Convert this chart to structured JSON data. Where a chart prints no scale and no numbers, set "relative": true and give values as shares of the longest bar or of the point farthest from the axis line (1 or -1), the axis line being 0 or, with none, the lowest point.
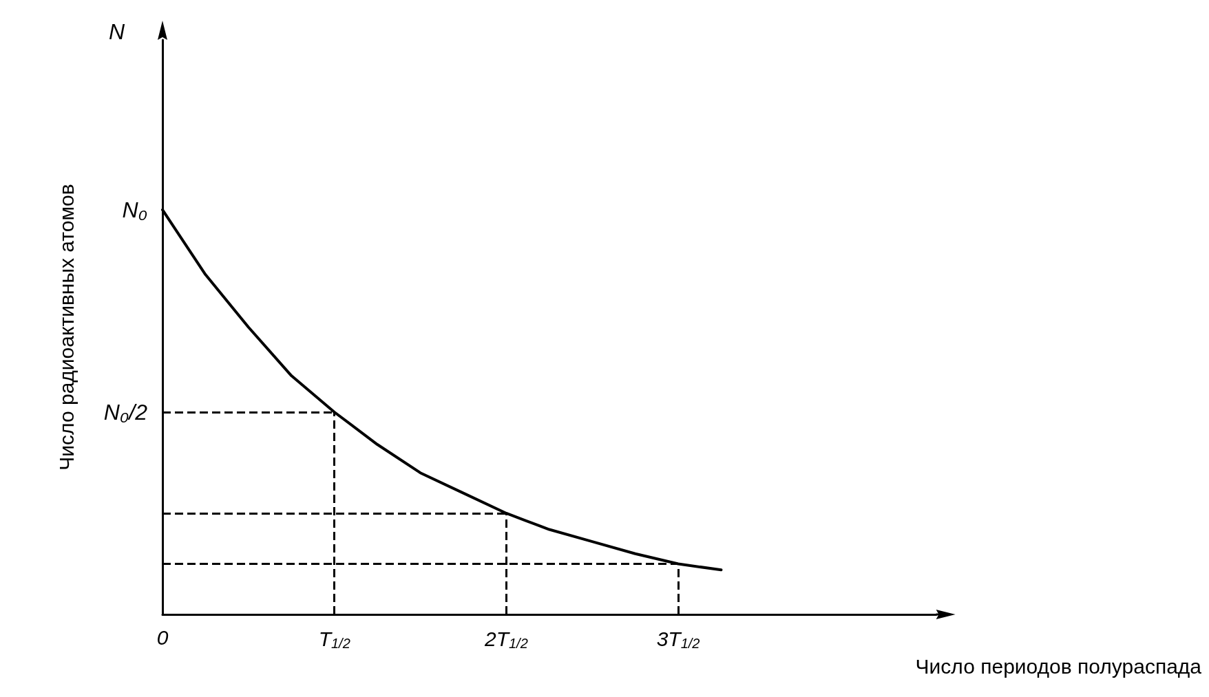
{
  "chart_data": {
    "type": "line",
    "relative": true,
    "xlabel": "Число периодов полураспада",
    "ylabel": "Число радиоактивных атомов",
    "annotations": [
      "N",
      {
        "text": "N₀",
        "x": "0",
        "y": 1
      }
    ],
    "categories": [
      "0",
      null,
      null,
      null,
      "T$_{1/2}$",
      null,
      null,
      null,
      "2T$_{1/2}$",
      null,
      null,
      null,
      "3T$_{1/2}$",
      null,
      null,
      null,
      null,
      null,
      null
    ],
    "series": [
      {
        "color": "#000000",
        "values": [
          1,
          0.84,
          0.71,
          0.59,
          0.5,
          0.42,
          0.35,
          0.3,
          0.25,
          0.21,
          0.18,
          0.15,
          0.125,
          0.11,
          null,
          null,
          null,
          null,
          null
        ]
      }
    ],
    "ref_lines": [
      {
        "axis": "y",
        "value": 0.5,
        "line_style": "dashed",
        "label": "N₀/2"
      },
      {
        "axis": "y",
        "value": 0.25,
        "line_style": "dashed"
      },
      {
        "axis": "y",
        "value": 0.125,
        "line_style": "dashed"
      },
      {
        "axis": "x",
        "value": "T$_{1/2}$",
        "line_style": "dashed"
      },
      {
        "axis": "x",
        "value": "2T$_{1/2}$",
        "line_style": "dashed"
      },
      {
        "axis": "x",
        "value": "3T$_{1/2}$",
        "line_style": "dashed"
      }
    ],
    "grid": false,
    "marker": "none",
    "line_style": "solid"
  }
}
